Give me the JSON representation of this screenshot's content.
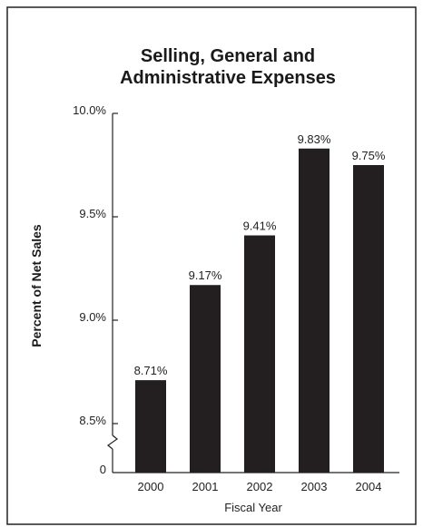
{
  "chart_data": {
    "type": "bar",
    "title_lines": [
      "Selling, General and",
      "Administrative Expenses"
    ],
    "xlabel": "Fiscal Year",
    "ylabel": "Percent of Net Sales",
    "categories": [
      "2000",
      "2001",
      "2002",
      "2003",
      "2004"
    ],
    "values": [
      8.71,
      9.17,
      9.41,
      9.83,
      9.75
    ],
    "value_labels": [
      "8.71%",
      "9.17%",
      "9.41%",
      "9.83%",
      "9.75%"
    ],
    "ylim": [
      8.5,
      10.0
    ],
    "y_ticks": [
      {
        "value": 8.5,
        "label": "8.5%"
      },
      {
        "value": 9.0,
        "label": "9.0%"
      },
      {
        "value": 9.5,
        "label": "9.5%"
      },
      {
        "value": 10.0,
        "label": "10.0%"
      }
    ],
    "y_zero_label": "0",
    "axis_break": true,
    "bar_color": "#231f20",
    "grid": false,
    "legend": "none"
  }
}
